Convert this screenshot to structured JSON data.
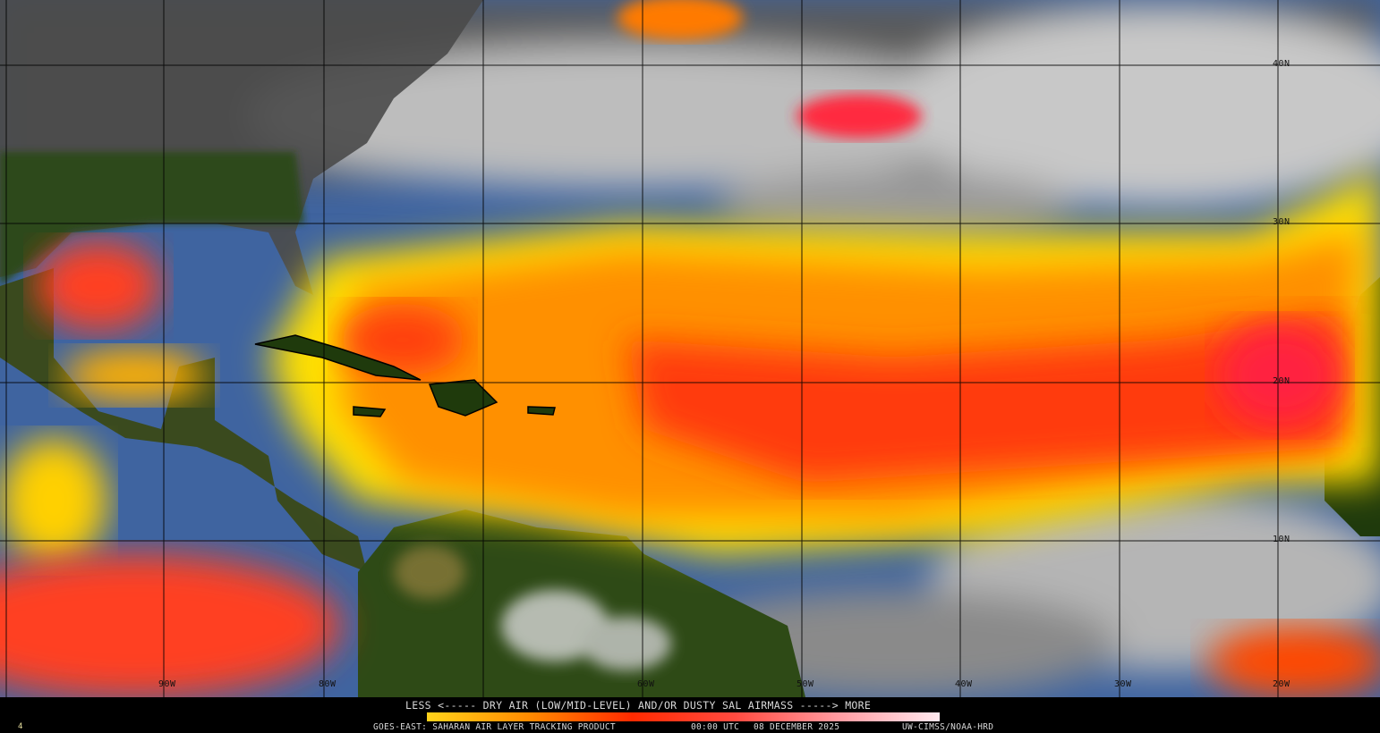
{
  "product": {
    "legend_title": "LESS <----- DRY AIR (LOW/MID-LEVEL) AND/OR DUSTY SAL AIRMASS -----> MORE",
    "satellite_product": "GOES-EAST: SAHARAN AIR LAYER TRACKING PRODUCT",
    "time": "00:00 UTC",
    "date": "08 DECEMBER 2025",
    "credit": "UW-CIMSS/NOAA-HRD",
    "frame_number": "4"
  },
  "colorscale": {
    "low_label": "LESS",
    "high_label": "MORE",
    "colors": [
      "#ffd21a",
      "#ff8a00",
      "#ff2a00",
      "#ff4a40",
      "#ff9aa0",
      "#ffe8ee"
    ]
  },
  "grid": {
    "latitude_labels": [
      "40N",
      "30N",
      "20N",
      "10N"
    ],
    "longitude_labels": [
      "90W",
      "80W",
      "60W",
      "50W",
      "40W",
      "30W",
      "20W"
    ]
  },
  "colors": {
    "ocean": "#3f64a0",
    "land": "#24400f",
    "cloud": "#b8b8b8",
    "background": "#000000"
  }
}
